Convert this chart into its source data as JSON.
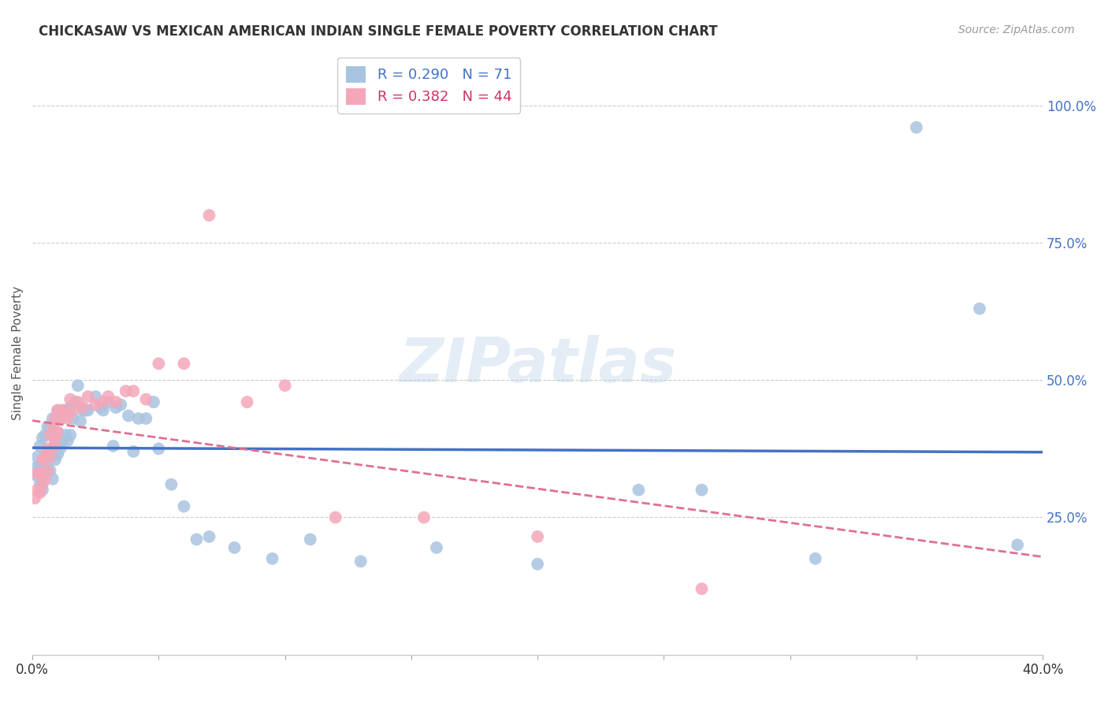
{
  "title": "CHICKASAW VS MEXICAN AMERICAN INDIAN SINGLE FEMALE POVERTY CORRELATION CHART",
  "source": "Source: ZipAtlas.com",
  "ylabel": "Single Female Poverty",
  "ytick_vals": [
    0.25,
    0.5,
    0.75,
    1.0
  ],
  "ytick_labels": [
    "25.0%",
    "50.0%",
    "75.0%",
    "100.0%"
  ],
  "xlim": [
    0.0,
    0.4
  ],
  "ylim": [
    0.0,
    1.1
  ],
  "chickasaw_R": 0.29,
  "chickasaw_N": 71,
  "mexican_R": 0.382,
  "mexican_N": 44,
  "watermark": "ZIPatlas",
  "color_chickasaw": "#a8c4e0",
  "color_mexican": "#f4a7b9",
  "color_line_chickasaw": "#4472c4",
  "color_line_mexican": "#e07090",
  "color_text_blue": "#4472c4",
  "background": "#ffffff",
  "chickasaw_x": [
    0.001,
    0.002,
    0.002,
    0.003,
    0.003,
    0.003,
    0.004,
    0.004,
    0.004,
    0.005,
    0.005,
    0.005,
    0.006,
    0.006,
    0.006,
    0.007,
    0.007,
    0.007,
    0.008,
    0.008,
    0.008,
    0.009,
    0.009,
    0.01,
    0.01,
    0.01,
    0.011,
    0.011,
    0.012,
    0.012,
    0.013,
    0.013,
    0.014,
    0.015,
    0.015,
    0.016,
    0.017,
    0.018,
    0.019,
    0.02,
    0.021,
    0.022,
    0.025,
    0.027,
    0.028,
    0.03,
    0.032,
    0.033,
    0.035,
    0.038,
    0.04,
    0.042,
    0.045,
    0.048,
    0.05,
    0.055,
    0.06,
    0.065,
    0.07,
    0.08,
    0.095,
    0.11,
    0.13,
    0.16,
    0.2,
    0.24,
    0.265,
    0.31,
    0.35,
    0.375,
    0.39
  ],
  "chickasaw_y": [
    0.34,
    0.325,
    0.36,
    0.31,
    0.345,
    0.38,
    0.3,
    0.35,
    0.395,
    0.33,
    0.36,
    0.4,
    0.34,
    0.37,
    0.415,
    0.335,
    0.37,
    0.415,
    0.32,
    0.37,
    0.43,
    0.355,
    0.385,
    0.365,
    0.405,
    0.445,
    0.375,
    0.43,
    0.39,
    0.445,
    0.4,
    0.445,
    0.39,
    0.4,
    0.45,
    0.43,
    0.46,
    0.49,
    0.425,
    0.445,
    0.445,
    0.445,
    0.47,
    0.45,
    0.445,
    0.46,
    0.38,
    0.45,
    0.455,
    0.435,
    0.37,
    0.43,
    0.43,
    0.46,
    0.375,
    0.31,
    0.27,
    0.21,
    0.215,
    0.195,
    0.175,
    0.21,
    0.17,
    0.195,
    0.165,
    0.3,
    0.3,
    0.175,
    0.96,
    0.63,
    0.2
  ],
  "mexican_x": [
    0.001,
    0.002,
    0.002,
    0.003,
    0.003,
    0.004,
    0.004,
    0.005,
    0.005,
    0.006,
    0.006,
    0.007,
    0.007,
    0.008,
    0.008,
    0.009,
    0.009,
    0.01,
    0.01,
    0.011,
    0.012,
    0.013,
    0.014,
    0.015,
    0.016,
    0.018,
    0.02,
    0.022,
    0.025,
    0.028,
    0.03,
    0.033,
    0.037,
    0.04,
    0.045,
    0.05,
    0.06,
    0.07,
    0.085,
    0.1,
    0.12,
    0.155,
    0.2,
    0.265
  ],
  "mexican_y": [
    0.285,
    0.3,
    0.33,
    0.295,
    0.33,
    0.31,
    0.355,
    0.32,
    0.36,
    0.335,
    0.375,
    0.36,
    0.4,
    0.375,
    0.415,
    0.39,
    0.43,
    0.405,
    0.445,
    0.43,
    0.445,
    0.44,
    0.43,
    0.465,
    0.445,
    0.46,
    0.45,
    0.47,
    0.455,
    0.46,
    0.47,
    0.46,
    0.48,
    0.48,
    0.465,
    0.53,
    0.53,
    0.8,
    0.46,
    0.49,
    0.25,
    0.25,
    0.215,
    0.12
  ]
}
